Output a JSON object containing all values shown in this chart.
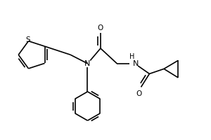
{
  "bg_color": "#ffffff",
  "line_color": "#000000",
  "line_width": 1.2,
  "fig_width": 3.0,
  "fig_height": 2.0,
  "dpi": 100,
  "xlim": [
    0,
    5.5
  ],
  "ylim": [
    0,
    3.5
  ]
}
